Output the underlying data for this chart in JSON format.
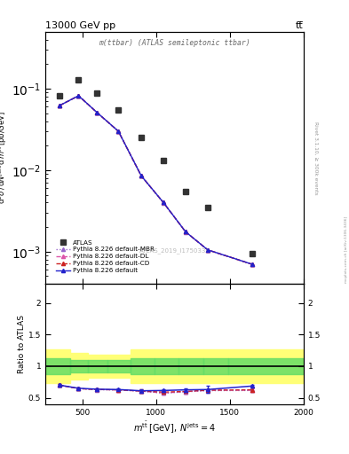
{
  "title_top": "13000 GeV pp",
  "title_right": "tt̅",
  "plot_label": "m(ttbar) (ATLAS semileptonic ttbar)",
  "watermark": "ATLAS_2019_I1750330",
  "right_label": "Rivet 3.1.10, ≥ 300k events",
  "mcplots_label": "mcplots.cern.ch [arXiv:1306.3436]",
  "atlas_x": [
    345,
    475,
    600,
    745,
    900,
    1050,
    1200,
    1350,
    1650
  ],
  "atlas_y": [
    0.082,
    0.13,
    0.088,
    0.055,
    0.025,
    0.013,
    0.0055,
    0.0035,
    0.00095
  ],
  "pythia_x": [
    345,
    475,
    600,
    745,
    900,
    1050,
    1200,
    1350,
    1650
  ],
  "pythia_default_y": [
    0.062,
    0.082,
    0.051,
    0.03,
    0.0085,
    0.004,
    0.00175,
    0.00105,
    0.0007
  ],
  "pythia_cd_y": [
    0.062,
    0.082,
    0.051,
    0.03,
    0.0085,
    0.004,
    0.00175,
    0.00105,
    0.0007
  ],
  "pythia_dl_y": [
    0.062,
    0.082,
    0.051,
    0.03,
    0.0085,
    0.004,
    0.00175,
    0.00105,
    0.0007
  ],
  "pythia_mbr_y": [
    0.062,
    0.082,
    0.051,
    0.03,
    0.0085,
    0.004,
    0.00175,
    0.00105,
    0.0007
  ],
  "ratio_x": [
    345,
    475,
    600,
    745,
    900,
    1050,
    1200,
    1350,
    1650
  ],
  "ratio_default": [
    0.7,
    0.65,
    0.635,
    0.63,
    0.61,
    0.615,
    0.625,
    0.63,
    0.685
  ],
  "ratio_cd": [
    0.7,
    0.645,
    0.63,
    0.625,
    0.605,
    0.59,
    0.6,
    0.62,
    0.625
  ],
  "ratio_dl": [
    0.7,
    0.645,
    0.63,
    0.625,
    0.605,
    0.575,
    0.597,
    0.617,
    0.62
  ],
  "ratio_mbr": [
    0.7,
    0.645,
    0.628,
    0.623,
    0.603,
    0.573,
    0.593,
    0.613,
    0.615
  ],
  "ratio_default_yerr": [
    0.025,
    0.018,
    0.015,
    0.015,
    0.025,
    0.025,
    0.03,
    0.055,
    0.02
  ],
  "ratio_cd_yerr": [
    0.025,
    0.018,
    0.015,
    0.015,
    0.025,
    0.025,
    0.03,
    0.02,
    0.02
  ],
  "bin_edges": [
    250,
    420,
    540,
    670,
    830,
    990,
    1150,
    1320,
    1490,
    2000
  ],
  "yellow_lo": [
    0.73,
    0.79,
    0.82,
    0.82,
    0.73,
    0.73,
    0.73,
    0.73,
    0.73
  ],
  "yellow_hi": [
    1.27,
    1.21,
    1.18,
    1.18,
    1.27,
    1.27,
    1.27,
    1.27,
    1.27
  ],
  "green_lo": [
    0.87,
    0.9,
    0.9,
    0.9,
    0.87,
    0.87,
    0.87,
    0.87,
    0.87
  ],
  "green_hi": [
    1.13,
    1.1,
    1.1,
    1.1,
    1.13,
    1.13,
    1.13,
    1.13,
    1.13
  ],
  "color_atlas": "#333333",
  "color_default": "#2222cc",
  "color_cd": "#cc2222",
  "color_dl": "#dd55aa",
  "color_mbr": "#9966cc",
  "xlim": [
    250,
    2000
  ],
  "ylim_main": [
    0.0004,
    0.5
  ],
  "ylim_ratio": [
    0.4,
    2.3
  ],
  "ratio_yticks": [
    0.5,
    1.0,
    1.5,
    2.0
  ]
}
